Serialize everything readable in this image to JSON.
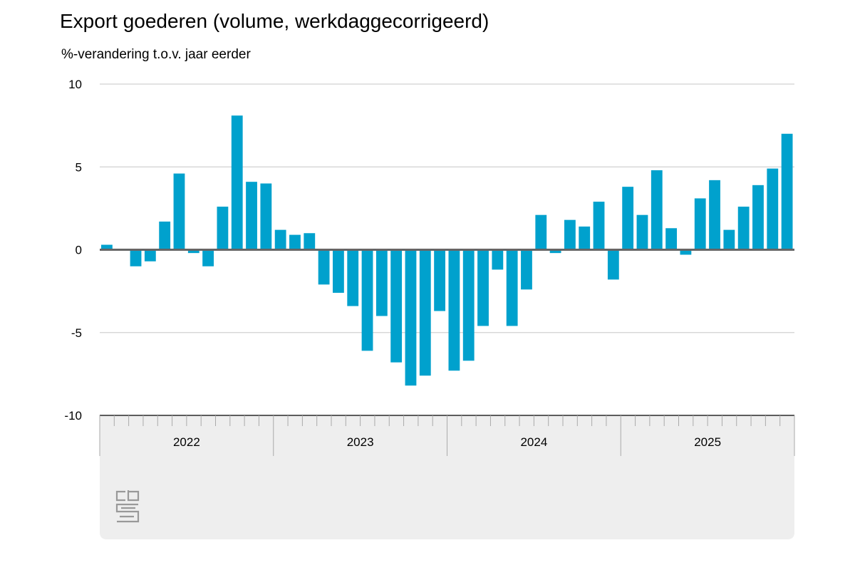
{
  "chart_data": {
    "type": "bar",
    "title": "Export goederen (volume, werkdaggecorrigeerd)",
    "ylabel": "%-verandering t.o.v. jaar eerder",
    "ylim": [
      -10,
      10
    ],
    "yticks": [
      10,
      5,
      0,
      -5,
      -10
    ],
    "grid": true,
    "years": [
      "2022",
      "2023",
      "2024",
      "2025"
    ],
    "months_per_year": 12,
    "bar_color": "#00a1cd",
    "values": [
      0.3,
      0.0,
      -1.0,
      -0.7,
      1.7,
      4.6,
      -0.2,
      -1.0,
      2.6,
      8.1,
      4.1,
      4.0,
      1.2,
      0.9,
      1.0,
      -2.1,
      -2.6,
      -3.4,
      -6.1,
      -4.0,
      -6.8,
      -8.2,
      -7.6,
      -3.7,
      -7.3,
      -6.7,
      -4.6,
      -1.2,
      -4.6,
      -2.4,
      2.1,
      -0.2,
      1.8,
      1.4,
      2.9,
      -1.8,
      3.8,
      2.1,
      4.8,
      1.3,
      -0.3,
      3.1,
      4.2,
      1.2,
      2.6,
      3.9,
      4.9,
      7.0
    ]
  },
  "logo": "cbs"
}
